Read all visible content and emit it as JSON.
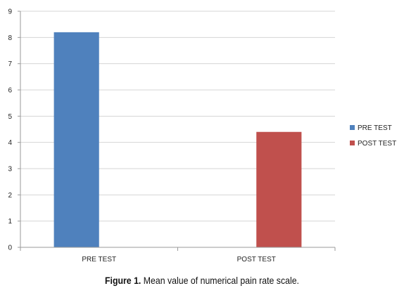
{
  "chart_data": {
    "type": "bar",
    "categories": [
      "PRE TEST",
      "POST TEST"
    ],
    "series": [
      {
        "name": "PRE TEST",
        "color": "#4F81BD",
        "values": [
          8.2,
          null
        ]
      },
      {
        "name": "POST TEST",
        "color": "#C0504D",
        "values": [
          null,
          4.4
        ]
      }
    ],
    "ylim": [
      0,
      9
    ],
    "yticks": [
      0,
      1,
      2,
      3,
      4,
      5,
      6,
      7,
      8,
      9
    ],
    "grid": true,
    "legend_position": "right"
  },
  "caption": {
    "label": "Figure 1.",
    "text": "Mean value of numerical pain rate scale."
  }
}
